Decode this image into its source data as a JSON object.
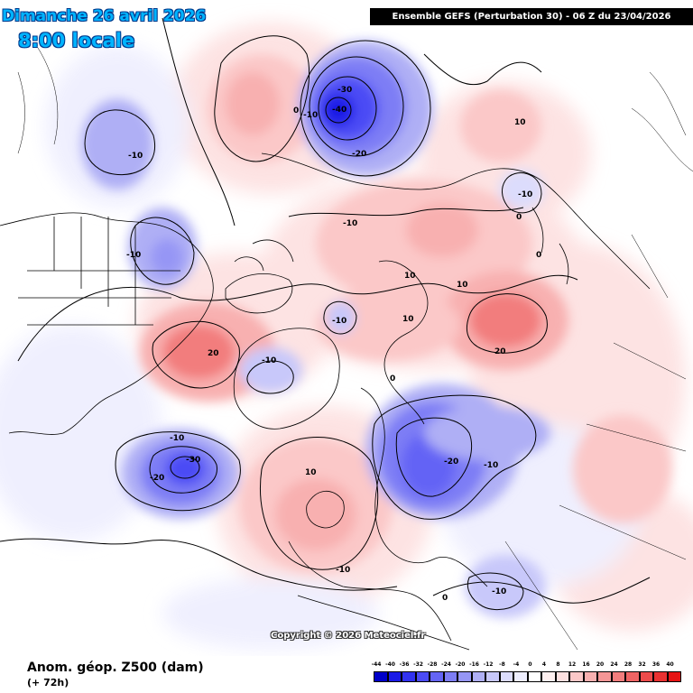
{
  "header": {
    "date_line": "Dimanche 26 avril 2026",
    "time_line": "8:00 locale",
    "model_line": "Ensemble GEFS  (Perturbation 30)  -  06 Z du 23/04/2026"
  },
  "copyright": "Copyright © 2026 Meteociel.fr",
  "footer": {
    "variable": "Anom. géop. Z500 (dam)",
    "lead_time": "(+ 72h)"
  },
  "legend": {
    "levels": [
      "-44",
      "-40",
      "-36",
      "-32",
      "-28",
      "-24",
      "-20",
      "-16",
      "-12",
      "-8",
      "-4",
      "0",
      "4",
      "8",
      "12",
      "16",
      "20",
      "24",
      "28",
      "32",
      "36",
      "40"
    ],
    "colors": [
      "#0000c8",
      "#1a1ae6",
      "#3232f0",
      "#4b4bf5",
      "#6464f5",
      "#7d7df5",
      "#9696f5",
      "#afaff5",
      "#c8c8fa",
      "#dcdcfc",
      "#eeeefe",
      "#ffffff",
      "#fff0f0",
      "#fde0e0",
      "#fbc8c8",
      "#f8b0b0",
      "#f59696",
      "#f27d7d",
      "#ef6464",
      "#ec4b4b",
      "#e93232",
      "#e61414"
    ]
  },
  "contour_labels": [
    {
      "text": "-10",
      "name": "label-alaska-low"
    },
    {
      "text": "-10",
      "name": "label-canada-low"
    },
    {
      "text": "-40",
      "name": "label-siberia-low-center"
    },
    {
      "text": "-30",
      "name": "label-siberia-low-30"
    },
    {
      "text": "-20",
      "name": "label-siberia-low-20"
    },
    {
      "text": "-10",
      "name": "label-siberia-low-10"
    },
    {
      "text": "0",
      "name": "label-zero-west"
    },
    {
      "text": "-10",
      "name": "label-arctic-10"
    },
    {
      "text": "10",
      "name": "label-asia-10"
    },
    {
      "text": "-10",
      "name": "label-asia-low"
    },
    {
      "text": "0",
      "name": "label-asia-zero"
    },
    {
      "text": "10",
      "name": "label-russia-10a"
    },
    {
      "text": "10",
      "name": "label-russia-10b"
    },
    {
      "text": "10",
      "name": "label-russia-10c"
    },
    {
      "text": "20",
      "name": "label-russia-high"
    },
    {
      "text": "-10",
      "name": "label-pole-low"
    },
    {
      "text": "20",
      "name": "label-canada-high"
    },
    {
      "text": "-10",
      "name": "label-greenland-low"
    },
    {
      "text": "0",
      "name": "label-greenland-zero"
    },
    {
      "text": "10",
      "name": "label-scandi-10"
    },
    {
      "text": "-20",
      "name": "label-europe-low"
    },
    {
      "text": "-10",
      "name": "label-europe-10"
    },
    {
      "text": "-10",
      "name": "label-atlantic-10"
    },
    {
      "text": "-30",
      "name": "label-atlantic-low-center"
    },
    {
      "text": "-20",
      "name": "label-atlantic-low-20"
    },
    {
      "text": "-10",
      "name": "label-uk-10"
    },
    {
      "text": "0",
      "name": "label-africa-zero"
    },
    {
      "text": "-10",
      "name": "label-asia-south-low"
    },
    {
      "text": "0",
      "name": "label-asia-south-zero"
    }
  ],
  "colors": {
    "ocean": "#ffffff",
    "coast": "#000000",
    "warm": "#f59696",
    "cold": "#7d7df5"
  }
}
